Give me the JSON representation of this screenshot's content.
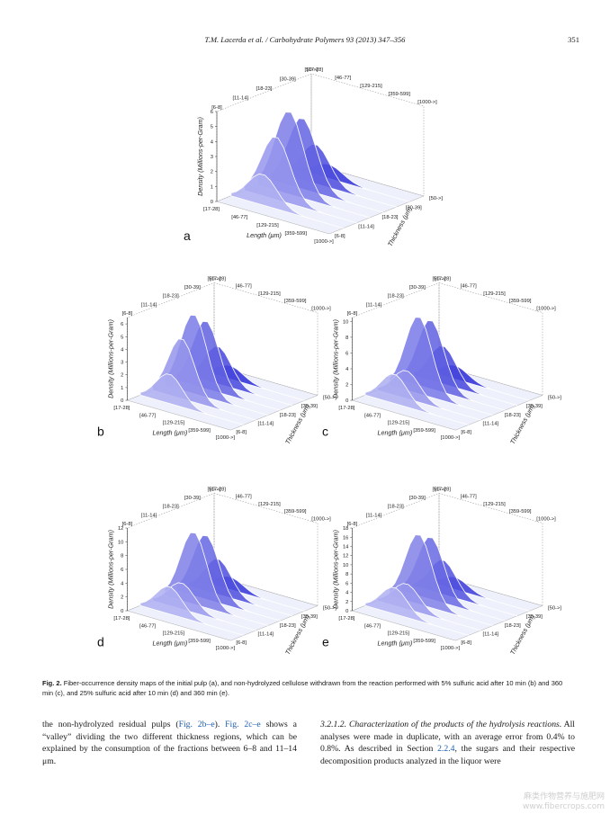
{
  "header": {
    "journal": "T.M. Lacerda et al. / Carbohydrate Polymers 93 (2013) 347–356",
    "page_number": "351"
  },
  "chart_data": [
    {
      "type": "surface3d",
      "panel": "a",
      "x_categories": [
        "[17-28]",
        "[46-77]",
        "[129-215]",
        "[359-599]",
        "[1000->]"
      ],
      "y_categories": [
        "[6-8]",
        "[11-14]",
        "[18-23]",
        "[30-39]",
        "[50->]"
      ],
      "z_ticks": [
        "0",
        "1",
        "2",
        "3",
        "4",
        "5",
        "6"
      ],
      "zmax": 6,
      "peak": 5.6,
      "xlabel": "Length (μm)",
      "ylabel": "Thickness (μm)",
      "zlabel": "Density (Millions-per-Gram)"
    },
    {
      "type": "surface3d",
      "panel": "b",
      "x_categories": [
        "[17-28]",
        "[46-77]",
        "[129-215]",
        "[359-599]",
        "[1000->]"
      ],
      "y_categories": [
        "[6-8]",
        "[11-14]",
        "[18-23]",
        "[30-39]",
        "[50->]"
      ],
      "z_ticks": [
        "0",
        "1",
        "2",
        "3",
        "4",
        "5",
        "6"
      ],
      "zmax": 6.5,
      "peak": 6.3,
      "xlabel": "Length (μm)",
      "ylabel": "Thickness (μm)",
      "zlabel": "Density (Millions-per-Gram)"
    },
    {
      "type": "surface3d",
      "panel": "c",
      "x_categories": [
        "[17-28]",
        "[46-77]",
        "[129-215]",
        "[359-599]",
        "[1000->]"
      ],
      "y_categories": [
        "[6-8]",
        "[11-14]",
        "[18-23]",
        "[30-39]",
        "[50->]"
      ],
      "z_ticks": [
        "0",
        "2",
        "4",
        "6",
        "8",
        "10"
      ],
      "zmax": 10.5,
      "peak": 10.3,
      "xlabel": "Length (μm)",
      "ylabel": "Thickness (μm)",
      "zlabel": "Density (Millions-per-Gram)"
    },
    {
      "type": "surface3d",
      "panel": "d",
      "x_categories": [
        "[17-28]",
        "[46-77]",
        "[129-215]",
        "[359-599]",
        "[1000->]"
      ],
      "y_categories": [
        "[6-8]",
        "[11-14]",
        "[18-23]",
        "[30-39]",
        "[50->]"
      ],
      "z_ticks": [
        "0",
        "2",
        "4",
        "6",
        "8",
        "10",
        "12"
      ],
      "zmax": 12,
      "peak": 11.0,
      "xlabel": "Length (μm)",
      "ylabel": "Thickness (μm)",
      "zlabel": "Density (Millions-per-Gram)"
    },
    {
      "type": "surface3d",
      "panel": "e",
      "x_categories": [
        "[17-28]",
        "[46-77]",
        "[129-215]",
        "[359-599]",
        "[1000->]"
      ],
      "y_categories": [
        "[6-8]",
        "[11-14]",
        "[18-23]",
        "[30-39]",
        "[50->]"
      ],
      "z_ticks": [
        "0",
        "2",
        "4",
        "6",
        "8",
        "10",
        "12",
        "14",
        "16",
        "18"
      ],
      "zmax": 18,
      "peak": 16.0,
      "xlabel": "Length (μm)",
      "ylabel": "Thickness (μm)",
      "zlabel": "Density (Millions-per-Gram)"
    }
  ],
  "caption": {
    "label": "Fig. 2.",
    "text": "Fiber-occurrence density maps of the initial pulp (a), and non-hydrolyzed cellulose withdrawn from the reaction performed with 5% sulfuric acid after 10 min (b) and 360 min (c), and 25% sulfuric acid after 10 min (d) and 360 min (e)."
  },
  "body_left": {
    "t1": "the non-hydrolyzed residual pulps (",
    "r1": "Fig. 2b–e",
    "t2": "). ",
    "r2": "Fig. 2c–e",
    "t3": " shows a “valley” dividing the two different thickness regions, which can be explained by the consumption of the fractions between 6–8 and 11–14 μm."
  },
  "body_right": {
    "section_title": "3.2.1.2. Characterization of the products of the hydrolysis reactions.",
    "t1": " All analyses were made in duplicate, with an average error from 0.4% to 0.8%. As described in Section ",
    "r1": "2.2.4",
    "t2": ", the sugars and their respective decomposition products analyzed in the liquor were"
  },
  "watermark": {
    "line1": "麻类作物营养与施肥网",
    "line2": "www.fibercrops.com"
  }
}
